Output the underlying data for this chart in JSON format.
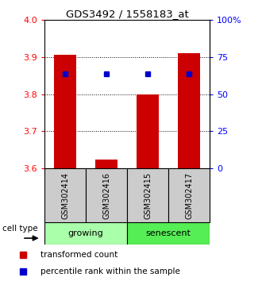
{
  "title": "GDS3492 / 1558183_at",
  "samples": [
    "GSM302414",
    "GSM302416",
    "GSM302415",
    "GSM302417"
  ],
  "groups": [
    "growing",
    "growing",
    "senescent",
    "senescent"
  ],
  "growing_color": "#AAFFAA",
  "senescent_color": "#55EE55",
  "bar_values": [
    3.905,
    3.625,
    3.8,
    3.91
  ],
  "percentile_values": [
    3.855,
    3.855,
    3.855,
    3.855
  ],
  "ylim": [
    3.6,
    4.0
  ],
  "yticks_left": [
    3.6,
    3.7,
    3.8,
    3.9,
    4.0
  ],
  "yticks_right_vals": [
    3.6,
    3.7,
    3.8,
    3.9,
    4.0
  ],
  "yticks_right_labels": [
    "0",
    "25",
    "50",
    "75",
    "100%"
  ],
  "bar_color": "#CC0000",
  "percentile_color": "#0000CC",
  "bar_width": 0.55,
  "dotted_lines": [
    3.7,
    3.8,
    3.9
  ],
  "group_label_growing": "growing",
  "group_label_senescent": "senescent",
  "cell_type_label": "cell type",
  "legend_bar": "transformed count",
  "legend_percentile": "percentile rank within the sample"
}
